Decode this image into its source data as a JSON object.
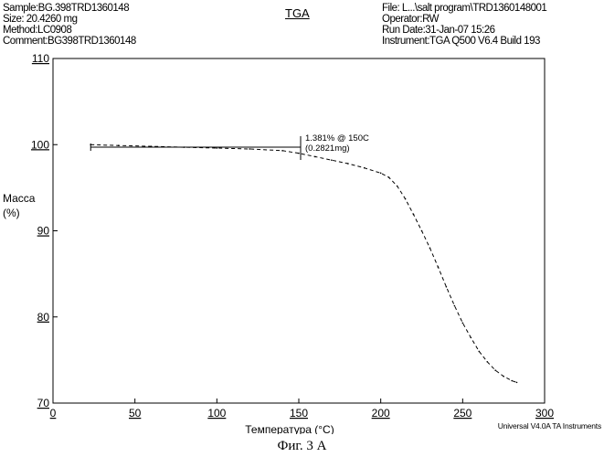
{
  "header": {
    "left_lines": [
      "Sample:BG.398TRD1360148",
      "Size: 20.4260 mg",
      "Method:LC0908",
      "Comment:BG398TRD1360148"
    ],
    "center_title": "TGA",
    "right_lines": [
      "File: L...\\salt program\\TRD1360148001",
      "Operator:RW",
      "Run Date:31-Jan-07 15:26",
      "Instrument:TGA Q500 V6.4 Build 193"
    ]
  },
  "footer": {
    "software": "Universal V4.0A TA Instruments"
  },
  "caption": "Фиг. 3 А",
  "chart_data": {
    "type": "line",
    "title": "TGA",
    "xlabel": "Температура (°C)",
    "ylabel": "Масса\n(%)",
    "xlim": [
      0,
      300
    ],
    "ylim": [
      70,
      110
    ],
    "xticks": [
      0,
      50,
      100,
      150,
      200,
      250,
      300
    ],
    "yticks": [
      70,
      80,
      90,
      100,
      110
    ],
    "grid": false,
    "series": [
      {
        "x": [
          23,
          40,
          60,
          80,
          100,
          120,
          140,
          150,
          160,
          170,
          180,
          190,
          200,
          205,
          210,
          215,
          220,
          225,
          230,
          235,
          240,
          245,
          250,
          255,
          260,
          265,
          270,
          275,
          280,
          283
        ],
        "values": [
          100.0,
          99.9,
          99.8,
          99.7,
          99.6,
          99.5,
          99.3,
          99.0,
          98.6,
          98.2,
          97.8,
          97.3,
          96.7,
          96.2,
          95.2,
          93.7,
          91.9,
          90.0,
          88.0,
          85.8,
          83.5,
          81.3,
          79.3,
          77.6,
          76.0,
          74.8,
          73.8,
          73.1,
          72.6,
          72.4
        ]
      }
    ],
    "annotations": [
      {
        "lines": [
          "1.381% @ 150C",
          "(0.2821mg)"
        ],
        "x": 150,
        "y": 99.6
      }
    ]
  }
}
